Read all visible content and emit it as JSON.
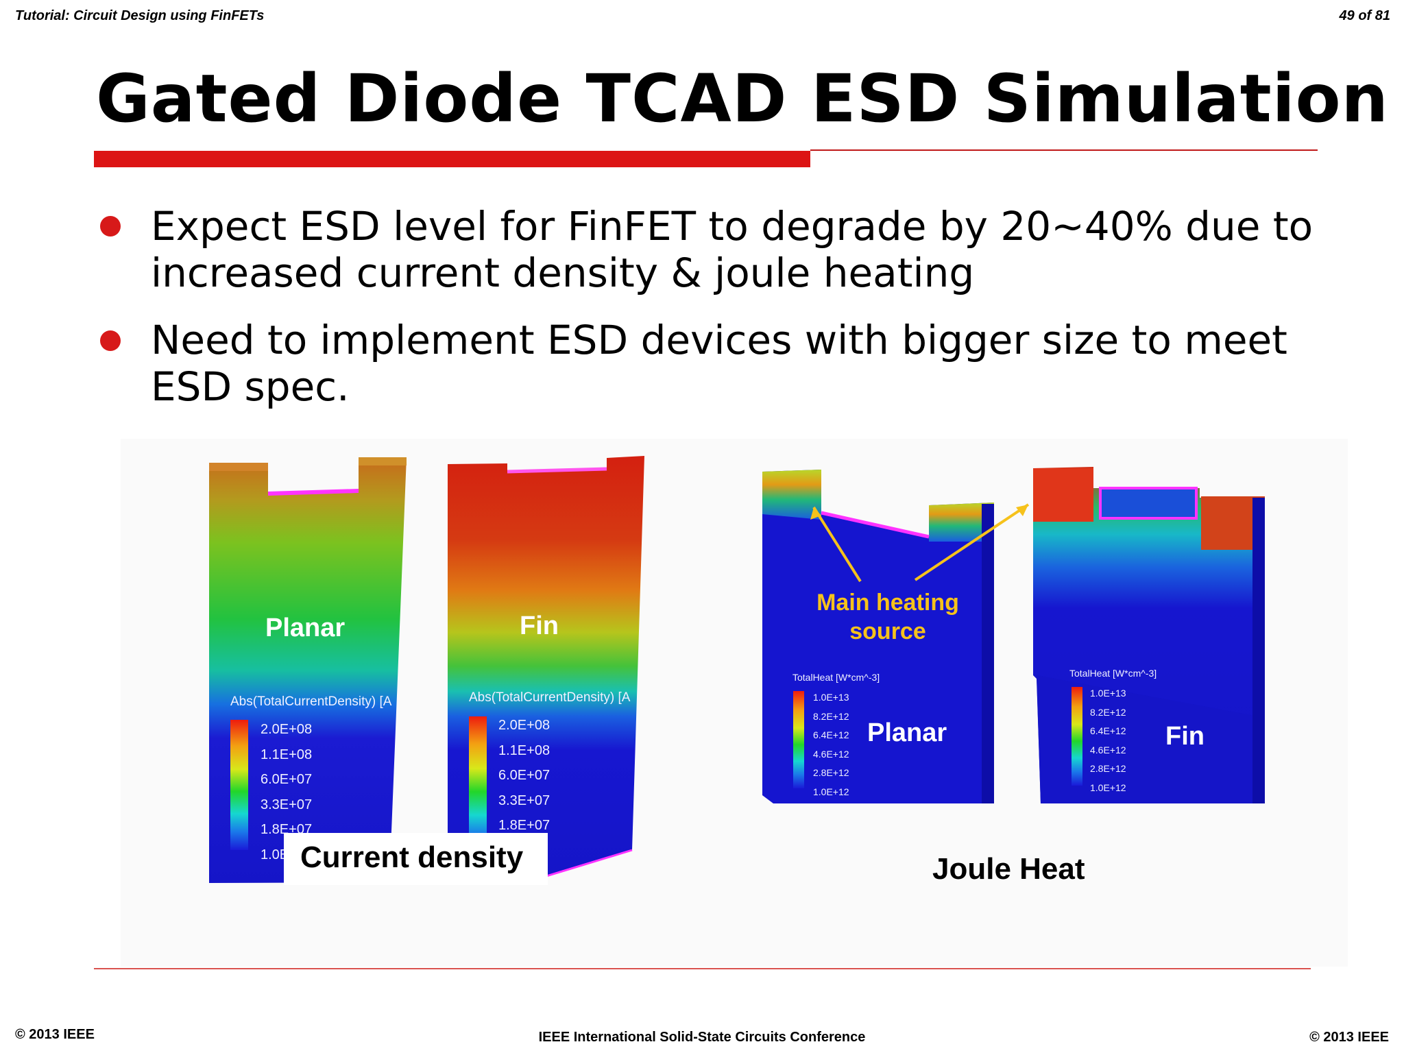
{
  "header": {
    "left": "Tutorial: Circuit Design using FinFETs",
    "right": "49 of 81"
  },
  "title": "Gated Diode TCAD ESD Simulation",
  "bullets": [
    {
      "line1": "Expect ESD level for FinFET to degrade by 20~40% due to",
      "line2": "increased current density & joule heating"
    },
    {
      "line1": "Need to implement ESD devices with bigger size to meet",
      "line2": "ESD spec."
    }
  ],
  "current_density": {
    "caption": "Current density",
    "legend_title": "Abs(TotalCurrentDensity) [A",
    "legend_values": [
      "2.0E+08",
      "1.1E+08",
      "6.0E+07",
      "3.3E+07",
      "1.8E+07",
      "1.0E"
    ],
    "labels": {
      "planar": "Planar",
      "fin": "Fin"
    }
  },
  "joule_heat": {
    "caption": "Joule Heat",
    "legend_title": "TotalHeat [W*cm^-3]",
    "legend_values": [
      "1.0E+13",
      "8.2E+12",
      "6.4E+12",
      "4.6E+12",
      "2.8E+12",
      "1.0E+12"
    ],
    "labels": {
      "planar": "Planar",
      "fin": "Fin"
    },
    "annotation": {
      "line1": "Main heating",
      "line2": "source"
    }
  },
  "footer": {
    "left": "© 2013 IEEE",
    "center": "IEEE International Solid-State Circuits Conference",
    "right": "© 2013 IEEE"
  },
  "colors": {
    "accent_red": "#dc1414",
    "annotation_yellow": "#f6c21b",
    "device_blue": "#1515d2",
    "highlight_magenta": "#ff33ff"
  }
}
